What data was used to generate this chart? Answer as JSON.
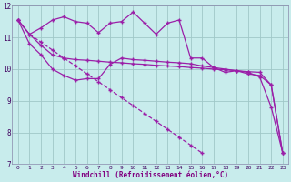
{
  "xlabel": "Windchill (Refroidissement éolien,°C)",
  "x_values": [
    0,
    1,
    2,
    3,
    4,
    5,
    6,
    7,
    8,
    9,
    10,
    11,
    12,
    13,
    14,
    15,
    16,
    17,
    18,
    19,
    20,
    21,
    22,
    23
  ],
  "line_wavy": [
    11.55,
    11.1,
    11.3,
    11.55,
    11.65,
    11.5,
    11.45,
    11.15,
    11.45,
    11.5,
    11.8,
    11.45,
    11.1,
    11.45,
    11.55,
    10.35,
    10.35,
    10.05,
    9.9,
    9.95,
    9.9,
    9.75,
    8.8,
    7.35
  ],
  "line_upper_flat": [
    11.55,
    11.1,
    10.75,
    10.45,
    10.35,
    10.3,
    10.28,
    10.25,
    10.22,
    10.2,
    10.17,
    10.15,
    10.12,
    10.1,
    10.08,
    10.05,
    10.03,
    10.0,
    9.98,
    9.95,
    9.92,
    9.9,
    9.5,
    7.35
  ],
  "line_lower_flat": [
    11.55,
    10.8,
    10.45,
    10.0,
    9.8,
    9.65,
    9.7,
    9.7,
    10.15,
    10.35,
    10.3,
    10.28,
    10.25,
    10.22,
    10.2,
    10.17,
    10.1,
    10.05,
    10.0,
    9.95,
    9.85,
    9.8,
    9.5,
    7.35
  ],
  "line_diagonal": [
    11.55,
    11.1,
    10.85,
    10.6,
    10.35,
    10.1,
    9.85,
    9.6,
    9.35,
    9.1,
    8.85,
    8.6,
    8.35,
    8.1,
    7.85,
    7.6,
    7.35,
    null,
    null,
    null,
    null,
    null,
    null,
    null
  ],
  "line_color": "#9b1fa8",
  "bg_color": "#c8ecec",
  "grid_color": "#a0c8c8",
  "ylim": [
    7,
    12
  ],
  "yticks": [
    7,
    8,
    9,
    10,
    11,
    12
  ],
  "xlabel_color": "#800080"
}
